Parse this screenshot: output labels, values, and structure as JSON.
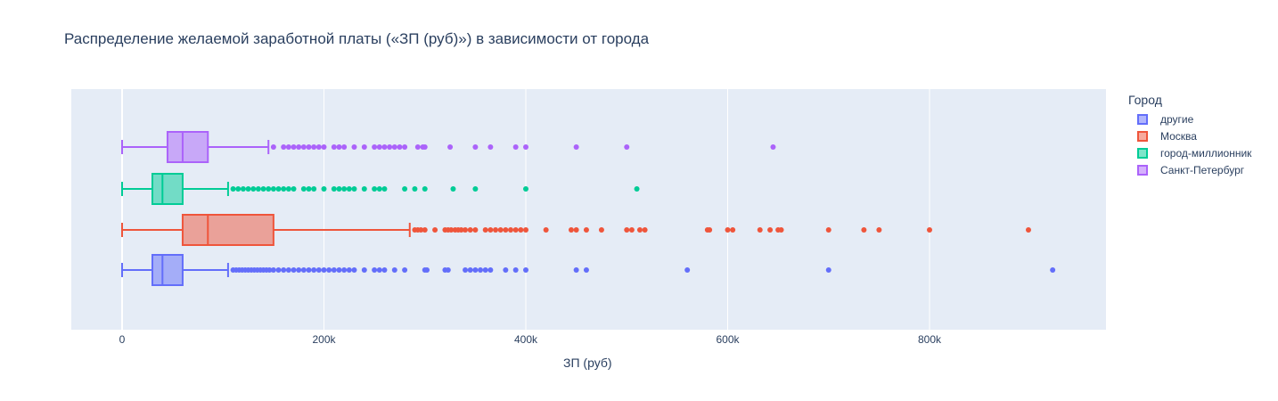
{
  "chart_data": {
    "type": "box",
    "orientation": "horizontal",
    "title": "Распределение желаемой заработной платы («ЗП (руб)») в зависимости от города",
    "xlabel": "ЗП (руб)",
    "xlim": [
      -50000,
      970000
    ],
    "x_ticks": [
      0,
      200000,
      400000,
      600000,
      800000
    ],
    "x_tick_labels": [
      "0",
      "200k",
      "400k",
      "600k",
      "800k"
    ],
    "grid": true,
    "legend_title": "Город",
    "legend_position": "top-right",
    "series": [
      {
        "name": "другие",
        "color": "#636efa",
        "fill": "rgba(99,110,250,0.5)",
        "min": 0,
        "q1": 30000,
        "median": 40000,
        "q3": 60000,
        "max": 105000,
        "outliers": [
          110000,
          113000,
          116000,
          119000,
          122000,
          125000,
          128000,
          131000,
          134000,
          137000,
          140000,
          143000,
          146000,
          150000,
          155000,
          160000,
          165000,
          170000,
          175000,
          180000,
          185000,
          190000,
          195000,
          200000,
          205000,
          210000,
          215000,
          220000,
          225000,
          230000,
          240000,
          250000,
          255000,
          260000,
          270000,
          280000,
          300000,
          302000,
          320000,
          323000,
          340000,
          345000,
          350000,
          355000,
          360000,
          365000,
          380000,
          390000,
          400000,
          450000,
          460000,
          560000,
          700000,
          922000
        ]
      },
      {
        "name": "Москва",
        "color": "#ef553b",
        "fill": "rgba(239,85,59,0.5)",
        "min": 0,
        "q1": 60000,
        "median": 85000,
        "q3": 150000,
        "max": 285000,
        "outliers": [
          290000,
          293000,
          296000,
          300000,
          310000,
          320000,
          323000,
          326000,
          330000,
          333000,
          336000,
          340000,
          345000,
          350000,
          360000,
          365000,
          370000,
          375000,
          380000,
          385000,
          390000,
          395000,
          400000,
          420000,
          445000,
          450000,
          460000,
          475000,
          500000,
          505000,
          513000,
          518000,
          580000,
          582000,
          600000,
          605000,
          632000,
          642000,
          650000,
          653000,
          700000,
          735000,
          750000,
          800000,
          898000
        ]
      },
      {
        "name": "город-миллионник",
        "color": "#00cc96",
        "fill": "rgba(0,204,150,0.5)",
        "min": 0,
        "q1": 30000,
        "median": 40000,
        "q3": 60000,
        "max": 105000,
        "outliers": [
          110000,
          115000,
          120000,
          125000,
          130000,
          135000,
          140000,
          145000,
          150000,
          155000,
          160000,
          165000,
          170000,
          180000,
          185000,
          190000,
          200000,
          210000,
          215000,
          220000,
          225000,
          230000,
          240000,
          250000,
          255000,
          260000,
          280000,
          290000,
          300000,
          328000,
          350000,
          400000,
          510000
        ]
      },
      {
        "name": "Санкт-Петербург",
        "color": "#ab63fa",
        "fill": "rgba(171,99,250,0.5)",
        "min": 0,
        "q1": 45000,
        "median": 60000,
        "q3": 85000,
        "max": 145000,
        "outliers": [
          150000,
          160000,
          165000,
          170000,
          175000,
          180000,
          185000,
          190000,
          195000,
          200000,
          210000,
          215000,
          220000,
          230000,
          240000,
          250000,
          255000,
          260000,
          265000,
          270000,
          275000,
          280000,
          293000,
          298000,
          300000,
          325000,
          350000,
          365000,
          390000,
          400000,
          450000,
          500000,
          645000
        ]
      }
    ]
  }
}
